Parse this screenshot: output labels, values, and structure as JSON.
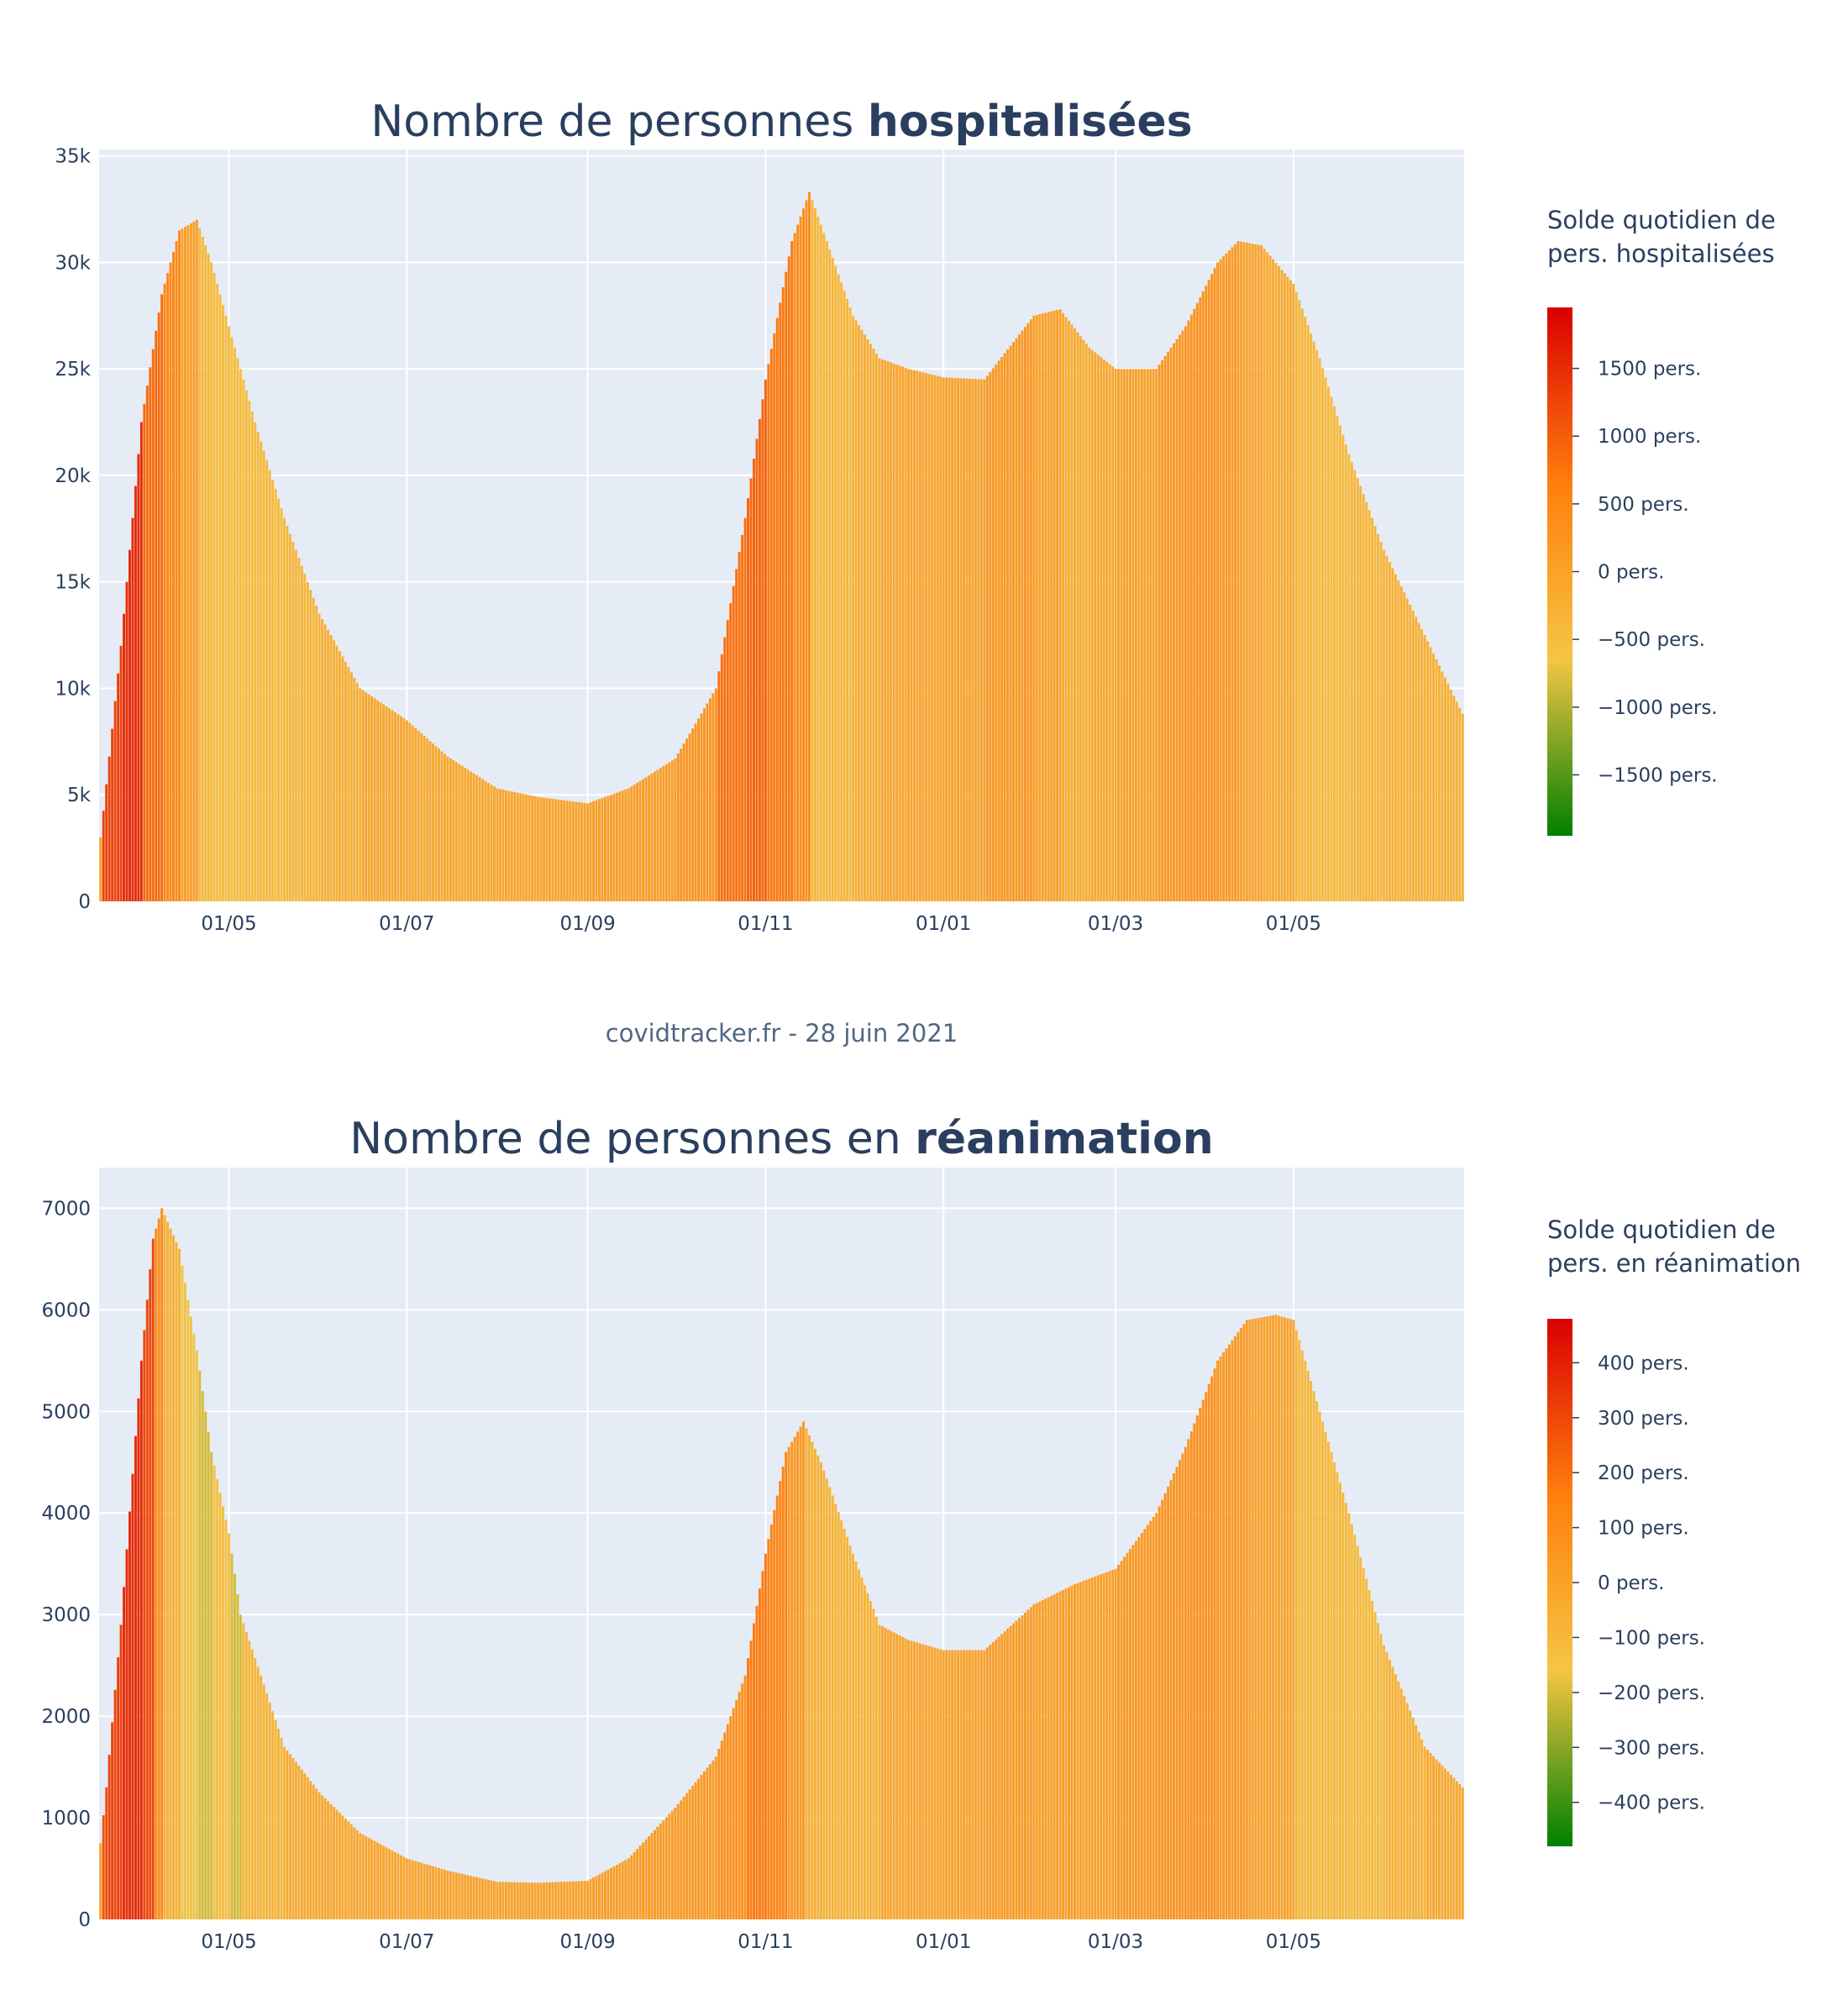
{
  "footer": "covidtracker.fr - 28 juin 2021",
  "palette": {
    "plot_bg": "#e5ecf6",
    "grid": "#ffffff",
    "text": "#2a3f5f",
    "scale": [
      "#008000",
      "#f5c543",
      "#ff7f0e",
      "#d90000"
    ]
  },
  "x_axis": {
    "start_date": "2020-03-18",
    "end_date": "2021-06-28",
    "tick_labels": [
      "01/05",
      "01/07",
      "01/09",
      "01/11",
      "01/01",
      "01/03",
      "01/05"
    ]
  },
  "chart_data": [
    {
      "type": "bar",
      "title_prefix": "Nombre de personnes ",
      "title_bold": "hospitalisées",
      "ylim": [
        0,
        35300
      ],
      "y_ticks": [
        0,
        5000,
        10000,
        15000,
        20000,
        25000,
        30000,
        35000
      ],
      "y_tick_labels": [
        "0",
        "5k",
        "10k",
        "15k",
        "20k",
        "25k",
        "30k",
        "35k"
      ],
      "x": [
        "2020-03-18",
        "2020-03-20",
        "2020-03-25",
        "2020-04-01",
        "2020-04-08",
        "2020-04-14",
        "2020-04-20",
        "2020-04-25",
        "2020-05-01",
        "2020-05-10",
        "2020-05-20",
        "2020-06-01",
        "2020-06-15",
        "2020-07-01",
        "2020-07-15",
        "2020-08-01",
        "2020-08-15",
        "2020-09-01",
        "2020-09-15",
        "2020-10-01",
        "2020-10-15",
        "2020-10-25",
        "2020-11-01",
        "2020-11-10",
        "2020-11-16",
        "2020-11-22",
        "2020-12-01",
        "2020-12-10",
        "2020-12-20",
        "2021-01-01",
        "2021-01-15",
        "2021-02-01",
        "2021-02-10",
        "2021-02-20",
        "2021-03-01",
        "2021-03-15",
        "2021-03-25",
        "2021-04-05",
        "2021-04-12",
        "2021-04-20",
        "2021-05-01",
        "2021-05-10",
        "2021-05-20",
        "2021-06-01",
        "2021-06-15",
        "2021-06-28"
      ],
      "values": [
        3000,
        5500,
        12000,
        22500,
        28500,
        31500,
        32000,
        30000,
        27000,
        22500,
        18000,
        13500,
        10000,
        8500,
        6800,
        5300,
        4900,
        4600,
        5300,
        6700,
        10000,
        18000,
        24500,
        31000,
        33300,
        31000,
        27500,
        25500,
        25000,
        24600,
        24500,
        27500,
        27800,
        26000,
        25000,
        25000,
        27000,
        30000,
        31000,
        30800,
        29000,
        25500,
        21000,
        16500,
        12500,
        8800
      ],
      "series_colorbar": {
        "title_line1": "Solde quotidien de",
        "title_line2": "pers. hospitalisées",
        "range": [
          -1950,
          1950
        ],
        "ticks": [
          1500,
          1000,
          500,
          0,
          -500,
          -1000,
          -1500
        ],
        "tick_labels": [
          "1500 pers.",
          "1000 pers.",
          "500 pers.",
          "0 pers.",
          "−5O0 pers.",
          "−1000 pers.",
          "−1500 pers."
        ]
      }
    },
    {
      "type": "bar",
      "title_prefix": "Nombre de personnes en ",
      "title_bold": "réanimation",
      "ylim": [
        0,
        7400
      ],
      "y_ticks": [
        0,
        1000,
        2000,
        3000,
        4000,
        5000,
        6000,
        7000
      ],
      "y_tick_labels": [
        "0",
        "1000",
        "2000",
        "3000",
        "4000",
        "5000",
        "6000",
        "7000"
      ],
      "x": [
        "2020-03-18",
        "2020-03-20",
        "2020-03-25",
        "2020-04-01",
        "2020-04-05",
        "2020-04-08",
        "2020-04-14",
        "2020-04-20",
        "2020-04-25",
        "2020-05-01",
        "2020-05-05",
        "2020-05-12",
        "2020-05-20",
        "2020-06-01",
        "2020-06-15",
        "2020-07-01",
        "2020-07-15",
        "2020-08-01",
        "2020-08-15",
        "2020-09-01",
        "2020-09-15",
        "2020-10-01",
        "2020-10-15",
        "2020-10-25",
        "2020-11-01",
        "2020-11-08",
        "2020-11-14",
        "2020-11-20",
        "2020-12-01",
        "2020-12-10",
        "2020-12-20",
        "2021-01-01",
        "2021-01-15",
        "2021-02-01",
        "2021-02-15",
        "2021-03-01",
        "2021-03-15",
        "2021-03-25",
        "2021-04-05",
        "2021-04-15",
        "2021-04-25",
        "2021-05-01",
        "2021-05-10",
        "2021-05-20",
        "2021-06-01",
        "2021-06-15",
        "2021-06-28"
      ],
      "values": [
        750,
        1300,
        2900,
        5500,
        6700,
        7000,
        6600,
        5600,
        4600,
        3800,
        3000,
        2400,
        1700,
        1250,
        850,
        600,
        480,
        370,
        360,
        380,
        600,
        1100,
        1600,
        2400,
        3600,
        4600,
        4900,
        4500,
        3600,
        2900,
        2750,
        2650,
        2650,
        3100,
        3300,
        3450,
        4000,
        4650,
        5500,
        5900,
        5950,
        5900,
        5000,
        4000,
        2700,
        1700,
        1300
      ],
      "series_colorbar": {
        "title_line1": "Solde quotidien de",
        "title_line2": "pers. en réanimation",
        "range": [
          -480,
          480
        ],
        "ticks": [
          400,
          300,
          200,
          100,
          0,
          -100,
          -200,
          -300,
          -400
        ],
        "tick_labels": [
          "400 pers.",
          "300 pers.",
          "200 pers.",
          "100 pers.",
          "0 pers.",
          "−100 pers.",
          "−200 pers.",
          "−300 pers.",
          "−400 pers."
        ]
      }
    }
  ]
}
